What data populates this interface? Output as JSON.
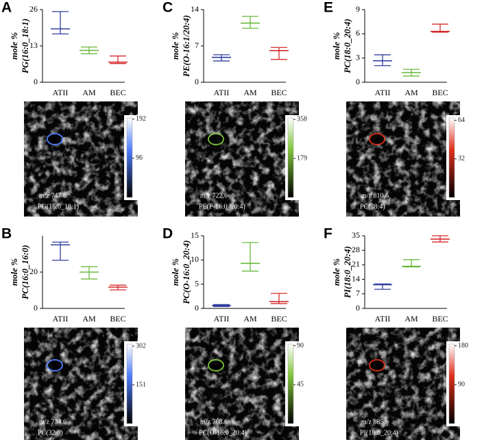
{
  "chart_data": [
    {
      "type": "errorbar",
      "panel": "A",
      "ylabel_unit": "mole %",
      "ylabel": "PG(16:0_18:1)",
      "categories": [
        "ATII",
        "AM",
        "BEC"
      ],
      "values": [
        19.1,
        11.4,
        7.2
      ],
      "low": [
        17.3,
        10.2,
        6.7
      ],
      "high": [
        25.3,
        12.6,
        9.4
      ],
      "colors": [
        "#2f3e9e",
        "#6ab83a",
        "#d42a2a"
      ],
      "ylim": [
        0,
        26
      ],
      "yticks": [
        0,
        13,
        26
      ],
      "image": {
        "mz": "m/z 747.6",
        "lipid": "PG(16:0_18:1)",
        "color": "#4f7dff",
        "colorbar_lim": [
          0,
          195
        ],
        "colorbar_ticks": [
          192,
          96
        ]
      }
    },
    {
      "type": "errorbar",
      "panel": "C",
      "ylabel_unit": "mole %",
      "ylabel": "PE(O-16:1/20:4)",
      "categories": [
        "ATII",
        "AM",
        "BEC"
      ],
      "values": [
        4.8,
        11.4,
        6.1
      ],
      "low": [
        4.1,
        10.4,
        4.4
      ],
      "high": [
        5.3,
        12.7,
        6.7
      ],
      "colors": [
        "#2f3e9e",
        "#6ab83a",
        "#d42a2a"
      ],
      "ylim": [
        0,
        14
      ],
      "yticks": [
        0,
        7,
        14
      ],
      "image": {
        "mz": "m/z 722.6",
        "lipid": "PE(P-16:0_20:4)",
        "color": "#7fc43a",
        "colorbar_lim": [
          0,
          365
        ],
        "colorbar_ticks": [
          358,
          179
        ]
      }
    },
    {
      "type": "errorbar",
      "panel": "E",
      "ylabel_unit": "mole %",
      "ylabel": "PC(18:0_20:4)",
      "categories": [
        "ATII",
        "AM",
        "BEC"
      ],
      "values": [
        2.66,
        1.2,
        6.3
      ],
      "low": [
        2.06,
        0.77,
        6.2
      ],
      "high": [
        3.4,
        1.6,
        7.2
      ],
      "colors": [
        "#2f3e9e",
        "#6ab83a",
        "#d42a2a"
      ],
      "ylim": [
        0,
        9
      ],
      "yticks": [
        0,
        3,
        6,
        9
      ],
      "image": {
        "mz": "m/z 810.6",
        "lipid": "PC(38:4)",
        "color": "#e0301c",
        "colorbar_lim": [
          0,
          66
        ],
        "colorbar_ticks": [
          64,
          32
        ]
      }
    },
    {
      "type": "errorbar",
      "panel": "B",
      "ylabel_unit": "mole %",
      "ylabel": "PC(16:0_16:0)",
      "categories": [
        "ATII",
        "AM",
        "BEC"
      ],
      "values": [
        35,
        20,
        11.7
      ],
      "low": [
        26.5,
        16.2,
        10.2
      ],
      "high": [
        36.5,
        23,
        12.8
      ],
      "colors": [
        "#2f3e9e",
        "#6ab83a",
        "#d42a2a"
      ],
      "ylim": [
        0,
        40
      ],
      "yticks": [
        0,
        20
      ],
      "image": {
        "mz": "m/z 734.6",
        "lipid": "PC(32:0)",
        "color": "#4f7dff",
        "colorbar_lim": [
          0,
          310
        ],
        "colorbar_ticks": [
          302,
          151
        ]
      }
    },
    {
      "type": "errorbar",
      "panel": "D",
      "ylabel_unit": "mole %",
      "ylabel": "PC(O-16:0_20:4)",
      "categories": [
        "ATII",
        "AM",
        "BEC"
      ],
      "values": [
        0.6,
        9.3,
        1.4
      ],
      "low": [
        0.4,
        7.7,
        1.0
      ],
      "high": [
        0.8,
        13.6,
        3.1
      ],
      "colors": [
        "#2f3e9e",
        "#6ab83a",
        "#d42a2a"
      ],
      "ylim": [
        0,
        15
      ],
      "yticks": [
        0,
        5,
        10,
        15
      ],
      "image": {
        "mz": "m/z 768.6",
        "lipid": "PC(O-16:0_20:4)",
        "color": "#7fc43a",
        "colorbar_lim": [
          0,
          92
        ],
        "colorbar_ticks": [
          90,
          45
        ]
      }
    },
    {
      "type": "errorbar",
      "panel": "F",
      "ylabel_unit": "mole %",
      "ylabel": "PI(18:0_20:4)",
      "categories": [
        "ATII",
        "AM",
        "BEC"
      ],
      "values": [
        11.4,
        20.3,
        33.4
      ],
      "low": [
        9.2,
        20,
        32
      ],
      "high": [
        11.8,
        23.5,
        35
      ],
      "colors": [
        "#2f3e9e",
        "#6ab83a",
        "#d42a2a"
      ],
      "ylim": [
        0,
        35
      ],
      "yticks": [
        0,
        7,
        14,
        21,
        28,
        35
      ],
      "image": {
        "mz": "m/z 885.6",
        "lipid": "PI(18:0_20:4)",
        "color": "#e0301c",
        "colorbar_lim": [
          0,
          184
        ],
        "colorbar_ticks": [
          180,
          90
        ]
      }
    }
  ]
}
